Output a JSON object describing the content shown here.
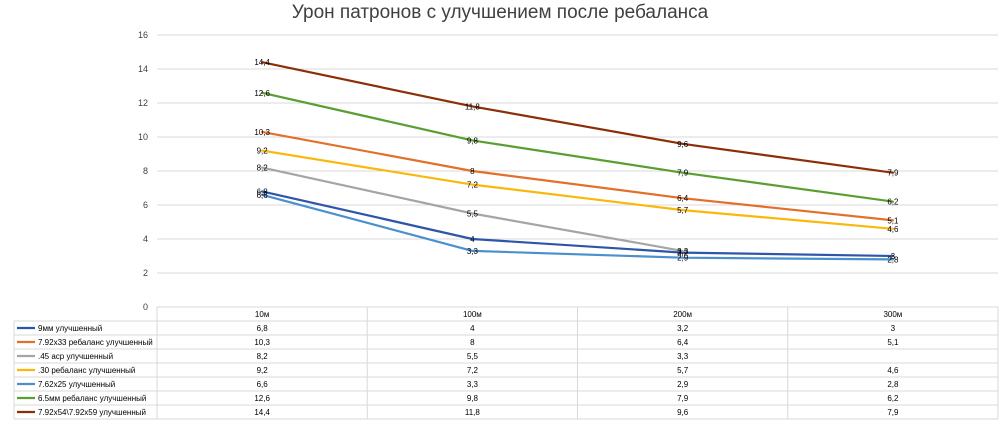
{
  "chart_data": {
    "type": "line",
    "title": "Урон патронов с улучшением после ребаланса",
    "xlabel": "",
    "ylabel": "",
    "categories": [
      "10м",
      "100м",
      "200м",
      "300м"
    ],
    "ylim": [
      0,
      16
    ],
    "yticks": [
      "0",
      "2",
      "4",
      "6",
      "8",
      "10",
      "12",
      "14",
      "16"
    ],
    "grid": true,
    "legend": "data table",
    "series": [
      {
        "name": "9мм улучшенный",
        "color": "#2e56a8",
        "values": [
          6.8,
          4,
          3.2,
          3
        ],
        "labels": [
          "6,8",
          "4",
          "3,2",
          "3"
        ]
      },
      {
        "name": "7.92x33 ребаланс улучшенный",
        "color": "#e2702b",
        "values": [
          10.3,
          8,
          6.4,
          5.1
        ],
        "labels": [
          "10,3",
          "8",
          "6,4",
          "5,1"
        ]
      },
      {
        "name": ".45 acp улучшенный",
        "color": "#a5a5a5",
        "values": [
          8.2,
          5.5,
          3.3,
          null
        ],
        "labels": [
          "8,2",
          "5,5",
          "3,3",
          ""
        ]
      },
      {
        "name": ".30 ребаланс улучшенный",
        "color": "#f9b80a",
        "values": [
          9.2,
          7.2,
          5.7,
          4.6
        ],
        "labels": [
          "9,2",
          "7,2",
          "5,7",
          "4,6"
        ]
      },
      {
        "name": "7.62x25 улучшенный",
        "color": "#4a90cd",
        "values": [
          6.6,
          3.3,
          2.9,
          2.8
        ],
        "labels": [
          "6,6",
          "3,3",
          "2,9",
          "2,8"
        ]
      },
      {
        "name": "6.5мм ребаланс улучшенный",
        "color": "#5a9e31",
        "values": [
          12.6,
          9.8,
          7.9,
          6.2
        ],
        "labels": [
          "12,6",
          "9,8",
          "7,9",
          "6,2"
        ]
      },
      {
        "name": "7.92x54\\7.92x59 улучшенный",
        "color": "#8b2f08",
        "values": [
          14.4,
          11.8,
          9.6,
          7.9
        ],
        "labels": [
          "14,4",
          "11,8",
          "9,6",
          "7,9"
        ]
      }
    ]
  }
}
